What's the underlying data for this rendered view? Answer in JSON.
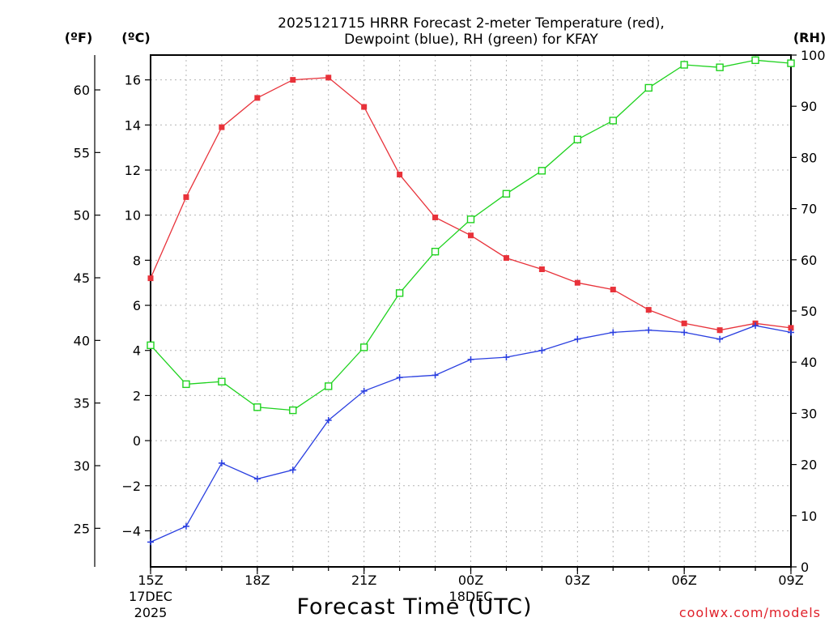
{
  "chart_data": {
    "type": "line",
    "title_line1": "2025121715 HRRR Forecast 2-meter Temperature (red),",
    "title_line2": "Dewpoint (blue), RH (green) for KFAY",
    "xlabel": "Forecast Time (UTC)",
    "credit": "coolwx.com/models",
    "left_axis_f_label": "(ºF)",
    "left_axis_c_label": "(ºC)",
    "right_axis_label": "(RH)",
    "x": [
      "15Z",
      "16Z",
      "17Z",
      "18Z",
      "19Z",
      "20Z",
      "21Z",
      "22Z",
      "23Z",
      "00Z",
      "01Z",
      "02Z",
      "03Z",
      "04Z",
      "05Z",
      "06Z",
      "07Z",
      "08Z",
      "09Z"
    ],
    "x_tick_labels": [
      {
        "label": "15Z",
        "sub1": "17DEC",
        "sub2": "2025"
      },
      {
        "label": "18Z",
        "sub1": "",
        "sub2": ""
      },
      {
        "label": "21Z",
        "sub1": "",
        "sub2": ""
      },
      {
        "label": "00Z",
        "sub1": "18DEC",
        "sub2": ""
      },
      {
        "label": "03Z",
        "sub1": "",
        "sub2": ""
      },
      {
        "label": "06Z",
        "sub1": "",
        "sub2": ""
      },
      {
        "label": "09Z",
        "sub1": "",
        "sub2": ""
      }
    ],
    "x_tick_hours": [
      0,
      3,
      6,
      9,
      12,
      15,
      18
    ],
    "ylim_c": [
      -5.6,
      17.1
    ],
    "yticks_c": [
      -4,
      -2,
      0,
      2,
      4,
      6,
      8,
      10,
      12,
      14,
      16
    ],
    "yticks_f": [
      25,
      30,
      35,
      40,
      45,
      50,
      55,
      60
    ],
    "ylim_rh": [
      0,
      100
    ],
    "yticks_rh": [
      0,
      10,
      20,
      30,
      40,
      50,
      60,
      70,
      80,
      90,
      100
    ],
    "grid": true,
    "series": [
      {
        "key": "temperature",
        "axis": "c",
        "color": "#e8323a",
        "marker": "filled-square",
        "values": [
          7.2,
          10.8,
          13.9,
          15.2,
          16.0,
          16.1,
          14.8,
          11.8,
          9.9,
          9.1,
          8.1,
          7.6,
          7.0,
          6.7,
          5.8,
          5.2,
          4.9,
          5.2,
          5.0
        ]
      },
      {
        "key": "dewpoint",
        "axis": "c",
        "color": "#2a3fe0",
        "marker": "plus",
        "values": [
          -4.5,
          -3.8,
          -1.0,
          -1.7,
          -1.3,
          0.9,
          2.2,
          2.8,
          2.9,
          3.6,
          3.7,
          4.0,
          4.5,
          4.8,
          4.9,
          4.8,
          4.5,
          5.1,
          4.8
        ]
      },
      {
        "key": "relative_humidity",
        "axis": "rh",
        "color": "#1ed21e",
        "marker": "open-square",
        "values": [
          43.3,
          35.7,
          36.2,
          31.2,
          30.6,
          35.3,
          42.9,
          53.5,
          61.6,
          67.9,
          72.9,
          77.4,
          83.5,
          87.2,
          93.6,
          98.1,
          97.6,
          99.0,
          98.4
        ]
      }
    ]
  }
}
